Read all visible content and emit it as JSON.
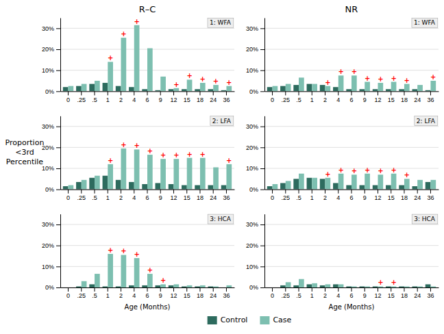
{
  "chart_data": [
    {
      "type": "bar",
      "title": "R–C",
      "subtitle": "1: WFA",
      "categories": [
        "0",
        ".25",
        ".5",
        "1",
        "2",
        "4",
        "6",
        "9",
        "12",
        "15",
        "18",
        "24",
        "36"
      ],
      "series": [
        {
          "name": "Control",
          "color": "#2d6b5e",
          "values": [
            2.0,
            2.5,
            3.5,
            4.0,
            2.5,
            2.0,
            1.0,
            0.5,
            1.0,
            1.0,
            1.0,
            1.0,
            0.5
          ]
        },
        {
          "name": "Case",
          "color": "#7dbfb0",
          "values": [
            2.5,
            3.5,
            5.0,
            14.0,
            25.5,
            31.5,
            20.5,
            7.0,
            1.5,
            5.5,
            4.0,
            3.0,
            2.5
          ]
        }
      ],
      "annotations": [
        {
          "text": "+",
          "category": "1",
          "series": "Case",
          "color": "#ff0000"
        },
        {
          "text": "+",
          "category": "2",
          "series": "Case",
          "color": "#ff0000"
        },
        {
          "text": "+",
          "category": "4",
          "series": "Case",
          "color": "#ff0000"
        },
        {
          "text": "+",
          "category": "12",
          "series": "Case",
          "color": "#ff0000"
        },
        {
          "text": "+",
          "category": "15",
          "series": "Case",
          "color": "#ff0000"
        },
        {
          "text": "+",
          "category": "18",
          "series": "Case",
          "color": "#ff0000"
        },
        {
          "text": "+",
          "category": "24",
          "series": "Case",
          "color": "#ff0000"
        },
        {
          "text": "+",
          "category": "36",
          "series": "Case",
          "color": "#ff0000"
        }
      ],
      "ylim": [
        0,
        35
      ],
      "yticks": [
        {
          "value": 0,
          "label": "0%"
        },
        {
          "value": 10,
          "label": "10%"
        },
        {
          "value": 20,
          "label": "20%"
        },
        {
          "value": 30,
          "label": "30%"
        }
      ],
      "grid": true
    },
    {
      "type": "bar",
      "title": "NR",
      "subtitle": "1: WFA",
      "categories": [
        "0",
        ".25",
        ".5",
        "1",
        "2",
        "4",
        "6",
        "9",
        "12",
        "15",
        "18",
        "24",
        "36"
      ],
      "series": [
        {
          "name": "Control",
          "color": "#2d6b5e",
          "values": [
            2.0,
            2.5,
            3.0,
            3.5,
            3.0,
            2.0,
            1.0,
            1.0,
            1.0,
            1.0,
            1.0,
            1.0,
            0.5
          ]
        },
        {
          "name": "Case",
          "color": "#7dbfb0",
          "values": [
            2.5,
            3.5,
            6.5,
            3.5,
            2.5,
            7.5,
            7.5,
            4.5,
            4.0,
            4.5,
            3.5,
            3.0,
            5.0
          ]
        }
      ],
      "annotations": [
        {
          "text": "+",
          "category": "2",
          "series": "Case",
          "color": "#ff0000"
        },
        {
          "text": "+",
          "category": "4",
          "series": "Case",
          "color": "#ff0000"
        },
        {
          "text": "+",
          "category": "6",
          "series": "Case",
          "color": "#ff0000"
        },
        {
          "text": "+",
          "category": "9",
          "series": "Case",
          "color": "#ff0000"
        },
        {
          "text": "+",
          "category": "12",
          "series": "Case",
          "color": "#ff0000"
        },
        {
          "text": "+",
          "category": "15",
          "series": "Case",
          "color": "#ff0000"
        },
        {
          "text": "+",
          "category": "18",
          "series": "Case",
          "color": "#ff0000"
        },
        {
          "text": "+",
          "category": "36",
          "series": "Case",
          "color": "#ff0000"
        }
      ],
      "ylim": [
        0,
        35
      ],
      "yticks": [
        {
          "value": 0,
          "label": "0%"
        },
        {
          "value": 10,
          "label": "10%"
        },
        {
          "value": 20,
          "label": "20%"
        },
        {
          "value": 30,
          "label": "30%"
        }
      ],
      "grid": true
    },
    {
      "type": "bar",
      "subtitle": "2: LFA",
      "ylabel": [
        "Proportion",
        "<3rd",
        "Percentile"
      ],
      "categories": [
        "0",
        ".25",
        ".5",
        "1",
        "2",
        "4",
        "6",
        "9",
        "12",
        "15",
        "18",
        "24",
        "36"
      ],
      "series": [
        {
          "name": "Control",
          "color": "#2d6b5e",
          "values": [
            1.5,
            3.5,
            5.5,
            6.5,
            4.5,
            3.5,
            2.5,
            3.0,
            2.5,
            2.0,
            2.0,
            2.0,
            2.0
          ]
        },
        {
          "name": "Case",
          "color": "#7dbfb0",
          "values": [
            2.0,
            4.5,
            6.5,
            12.0,
            19.5,
            19.0,
            16.5,
            14.5,
            14.5,
            15.0,
            15.0,
            10.5,
            12.0
          ]
        }
      ],
      "annotations": [
        {
          "text": "+",
          "category": "1",
          "series": "Case",
          "color": "#ff0000"
        },
        {
          "text": "+",
          "category": "2",
          "series": "Case",
          "color": "#ff0000"
        },
        {
          "text": "+",
          "category": "4",
          "series": "Case",
          "color": "#ff0000"
        },
        {
          "text": "+",
          "category": "6",
          "series": "Case",
          "color": "#ff0000"
        },
        {
          "text": "+",
          "category": "9",
          "series": "Case",
          "color": "#ff0000"
        },
        {
          "text": "+",
          "category": "12",
          "series": "Case",
          "color": "#ff0000"
        },
        {
          "text": "+",
          "category": "15",
          "series": "Case",
          "color": "#ff0000"
        },
        {
          "text": "+",
          "category": "18",
          "series": "Case",
          "color": "#ff0000"
        },
        {
          "text": "+",
          "category": "36",
          "series": "Case",
          "color": "#ff0000"
        }
      ],
      "ylim": [
        0,
        35
      ],
      "yticks": [
        {
          "value": 0,
          "label": "0%"
        },
        {
          "value": 10,
          "label": "10%"
        },
        {
          "value": 20,
          "label": "20%"
        },
        {
          "value": 30,
          "label": "30%"
        }
      ],
      "grid": true
    },
    {
      "type": "bar",
      "subtitle": "2: LFA",
      "categories": [
        "0",
        ".25",
        ".5",
        "1",
        "2",
        "4",
        "6",
        "9",
        "12",
        "15",
        "18",
        "24",
        "36"
      ],
      "series": [
        {
          "name": "Control",
          "color": "#2d6b5e",
          "values": [
            1.5,
            3.0,
            5.0,
            5.5,
            5.0,
            3.0,
            2.0,
            2.0,
            2.0,
            2.0,
            2.0,
            1.5,
            3.5
          ]
        },
        {
          "name": "Case",
          "color": "#7dbfb0",
          "values": [
            2.5,
            4.0,
            7.5,
            5.5,
            5.5,
            7.5,
            7.0,
            7.5,
            7.0,
            7.5,
            5.0,
            4.5,
            4.5
          ]
        }
      ],
      "annotations": [
        {
          "text": "+",
          "category": "2",
          "series": "Case",
          "color": "#ff0000"
        },
        {
          "text": "+",
          "category": "4",
          "series": "Case",
          "color": "#ff0000"
        },
        {
          "text": "+",
          "category": "6",
          "series": "Case",
          "color": "#ff0000"
        },
        {
          "text": "+",
          "category": "9",
          "series": "Case",
          "color": "#ff0000"
        },
        {
          "text": "+",
          "category": "12",
          "series": "Case",
          "color": "#ff0000"
        },
        {
          "text": "+",
          "category": "15",
          "series": "Case",
          "color": "#ff0000"
        },
        {
          "text": "+",
          "category": "18",
          "series": "Case",
          "color": "#ff0000"
        }
      ],
      "ylim": [
        0,
        35
      ],
      "yticks": [
        {
          "value": 0,
          "label": "0%"
        },
        {
          "value": 10,
          "label": "10%"
        },
        {
          "value": 20,
          "label": "20%"
        },
        {
          "value": 30,
          "label": "30%"
        }
      ],
      "grid": true
    },
    {
      "type": "bar",
      "subtitle": "3: HCA",
      "xlabel": "Age (Months)",
      "legend": "bottom",
      "categories": [
        "0",
        ".25",
        ".5",
        "1",
        "2",
        "4",
        "6",
        "9",
        "12",
        "15",
        "18",
        "24",
        "36"
      ],
      "series": [
        {
          "name": "Control",
          "color": "#2d6b5e",
          "values": [
            0.0,
            0.5,
            1.5,
            0.5,
            0.5,
            1.0,
            1.0,
            1.0,
            1.0,
            0.5,
            0.5,
            0.5,
            0.0
          ]
        },
        {
          "name": "Case",
          "color": "#7dbfb0",
          "values": [
            0.0,
            3.0,
            6.5,
            16.0,
            15.5,
            14.0,
            6.5,
            1.5,
            1.5,
            1.0,
            1.0,
            0.5,
            1.0
          ]
        }
      ],
      "annotations": [
        {
          "text": "+",
          "category": "1",
          "series": "Case",
          "color": "#ff0000"
        },
        {
          "text": "+",
          "category": "2",
          "series": "Case",
          "color": "#ff0000"
        },
        {
          "text": "+",
          "category": "4",
          "series": "Case",
          "color": "#ff0000"
        },
        {
          "text": "+",
          "category": "6",
          "series": "Case",
          "color": "#ff0000"
        },
        {
          "text": "+",
          "category": "9",
          "series": "Case",
          "color": "#ff0000"
        }
      ],
      "ylim": [
        0,
        35
      ],
      "yticks": [
        {
          "value": 0,
          "label": "0%"
        },
        {
          "value": 10,
          "label": "10%"
        },
        {
          "value": 20,
          "label": "20%"
        },
        {
          "value": 30,
          "label": "30%"
        }
      ],
      "grid": true
    },
    {
      "type": "bar",
      "subtitle": "3: HCA",
      "xlabel": "Age (Months)",
      "categories": [
        "0",
        ".25",
        ".5",
        "1",
        "2",
        "4",
        "6",
        "9",
        "12",
        "15",
        "18",
        "24",
        "36"
      ],
      "series": [
        {
          "name": "Control",
          "color": "#2d6b5e",
          "values": [
            0.0,
            1.0,
            1.0,
            1.5,
            1.0,
            1.5,
            0.5,
            0.5,
            0.5,
            0.5,
            0.5,
            0.5,
            1.5
          ]
        },
        {
          "name": "Case",
          "color": "#7dbfb0",
          "values": [
            0.0,
            2.5,
            4.0,
            2.0,
            1.5,
            1.5,
            0.5,
            0.5,
            0.5,
            0.5,
            0.5,
            0.5,
            0.5
          ]
        }
      ],
      "annotations": [
        {
          "text": "+",
          "category": "12",
          "series": "Case",
          "color": "#ff0000"
        },
        {
          "text": "+",
          "category": "15",
          "series": "Case",
          "color": "#ff0000"
        }
      ],
      "ylim": [
        0,
        35
      ],
      "yticks": [
        {
          "value": 0,
          "label": "0%"
        },
        {
          "value": 10,
          "label": "10%"
        },
        {
          "value": 20,
          "label": "20%"
        },
        {
          "value": 30,
          "label": "30%"
        }
      ],
      "grid": true
    }
  ]
}
